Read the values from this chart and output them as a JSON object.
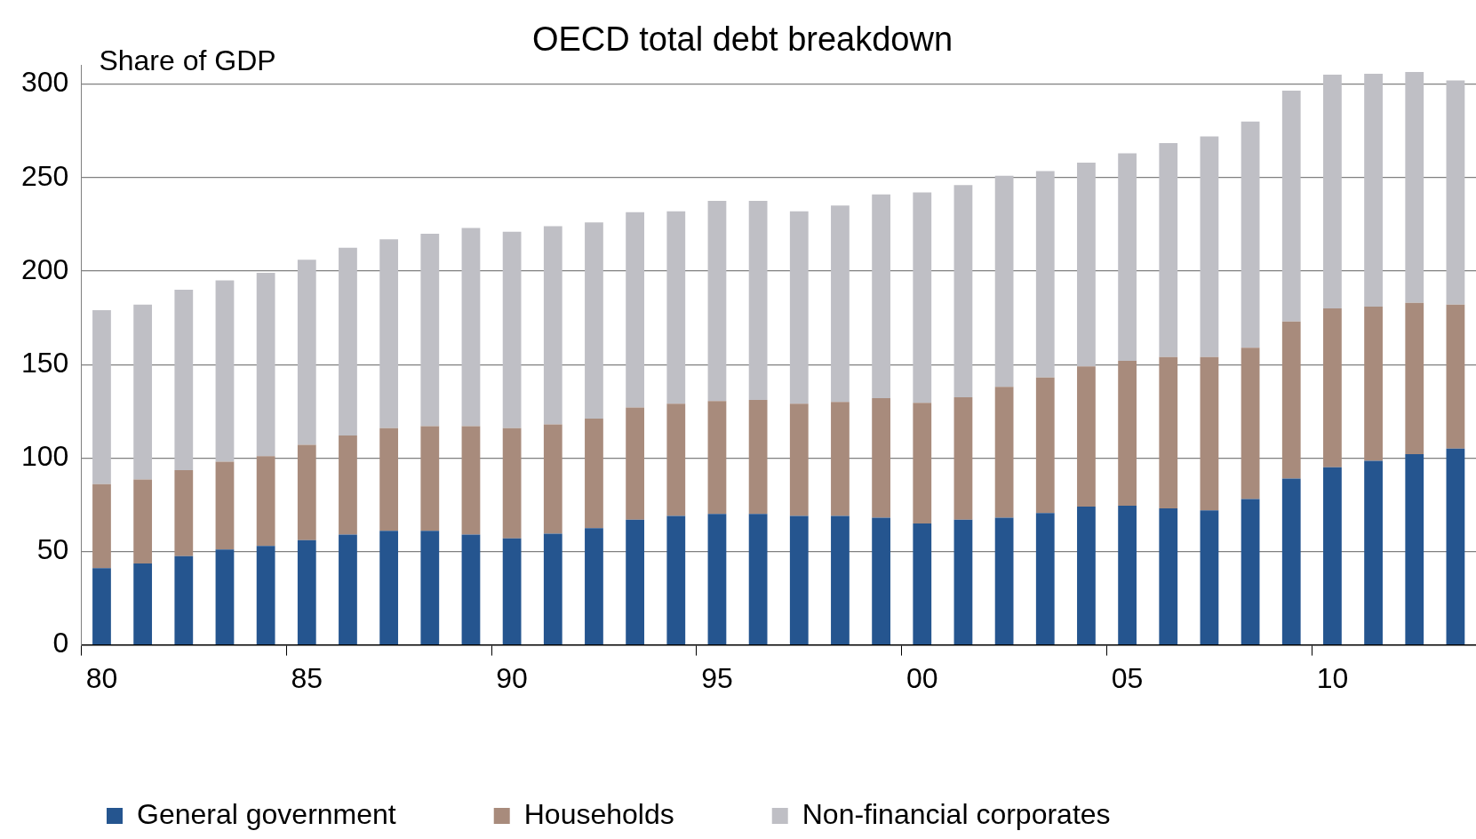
{
  "chart_data": {
    "type": "bar",
    "title": "OECD total debt breakdown",
    "ylabel": "Share of GDP",
    "stacked": true,
    "categories": [
      "80",
      null,
      null,
      null,
      null,
      "85",
      null,
      null,
      null,
      null,
      "90",
      null,
      null,
      null,
      null,
      "95",
      null,
      null,
      null,
      null,
      "00",
      null,
      null,
      null,
      null,
      "05",
      null,
      null,
      null,
      null,
      "10",
      null,
      null,
      null
    ],
    "series": [
      {
        "name": "General government",
        "color": "#25558f",
        "values": [
          41,
          43.5,
          47.5,
          51,
          53,
          56,
          59,
          61,
          61,
          59,
          57,
          59.5,
          62.5,
          67,
          69,
          70,
          70,
          69,
          69,
          68,
          65,
          67,
          68,
          70.5,
          74,
          74.5,
          73,
          72,
          78,
          89,
          95,
          98.5,
          102,
          105
        ]
      },
      {
        "name": "Households",
        "color": "#a88b7c",
        "values": [
          45,
          45,
          46,
          47,
          48,
          51,
          53,
          55,
          56,
          58,
          59,
          58.5,
          58.5,
          60,
          60,
          60.5,
          61,
          60,
          61,
          64,
          64.5,
          65.5,
          70,
          72.5,
          75,
          77.5,
          81,
          82,
          81,
          84,
          85,
          82.5,
          81,
          77
        ]
      },
      {
        "name": "Non-financial corporates",
        "color": "#bfbfc5",
        "values": [
          93,
          93.5,
          96.5,
          97,
          98,
          99,
          100.5,
          101,
          103,
          106,
          105,
          106,
          105,
          104.5,
          103,
          107,
          106.5,
          103,
          105,
          109,
          112.5,
          113.5,
          113,
          110.5,
          109,
          111,
          114.5,
          118,
          121,
          123.5,
          125,
          124.5,
          123.5,
          120
        ]
      }
    ],
    "ylim": [
      0,
      310
    ],
    "yticks": [
      0,
      50,
      100,
      150,
      200,
      250,
      300
    ],
    "grid": "y",
    "legend": "bottom"
  }
}
